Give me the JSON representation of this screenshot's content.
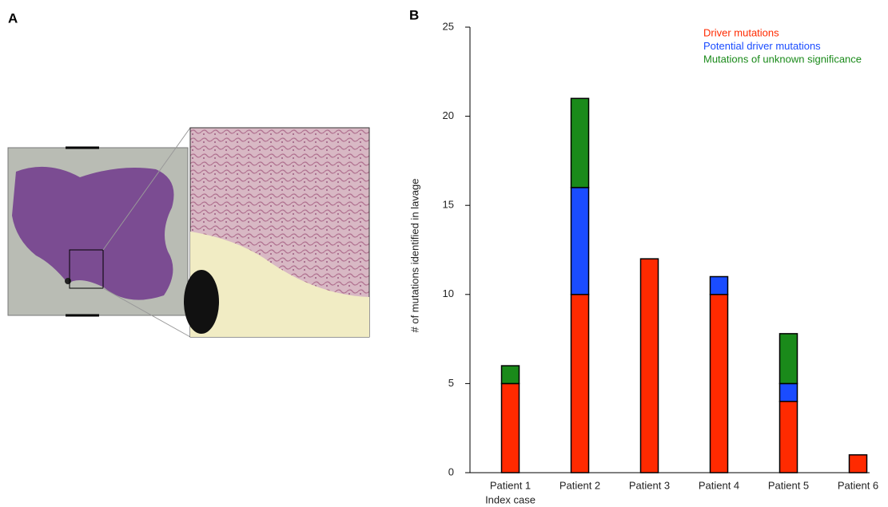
{
  "panel_labels": [
    "A",
    "B"
  ],
  "chart_data": {
    "type": "stacked_bar",
    "y_label": "# of mutations identified in lavage",
    "categories": [
      "Patient 1",
      "Patient 2",
      "Patient 3",
      "Patient 4",
      "Patient 5",
      "Patient 6"
    ],
    "annotations": [
      "Index case"
    ],
    "series": [
      {
        "name": "Driver mutations",
        "color": "#ff2a00",
        "values": [
          5,
          10,
          12,
          10,
          4,
          1
        ]
      },
      {
        "name": "Potential driver mutations",
        "color": "#1a4cff",
        "values": [
          0,
          6,
          0,
          1,
          1,
          0
        ]
      },
      {
        "name": "Mutations of unknown significance",
        "color": "#1a8a1a",
        "values": [
          1,
          5,
          0,
          0,
          2.8,
          0
        ]
      }
    ],
    "ylim": [
      0,
      25
    ],
    "yticks": [
      0,
      5,
      10,
      15,
      20,
      25
    ],
    "legend": "upper right"
  }
}
